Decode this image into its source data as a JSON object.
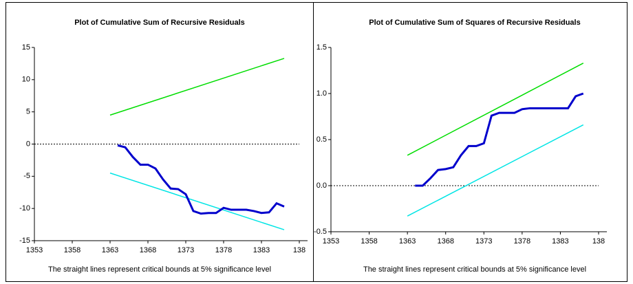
{
  "chart_data": [
    {
      "type": "line",
      "title": "Plot of Cumulative Sum of Recursive Residuals",
      "note": "The straight lines represent critical bounds at 5% significance level",
      "xlim": [
        1353,
        1388
      ],
      "xticks": [
        1353,
        1358,
        1363,
        1368,
        1373,
        1378,
        1383,
        {
          "value": 1388,
          "label": "138"
        }
      ],
      "ylim": [
        -15,
        15
      ],
      "yticks": [
        15,
        10,
        5,
        0,
        -5,
        -10,
        -15
      ],
      "reference_line": 0,
      "series": [
        {
          "color": "#00dd00",
          "x": [
            1363,
            1386
          ],
          "values": [
            4.5,
            13.3
          ]
        },
        {
          "color": "#00e5e5",
          "x": [
            1363,
            1386
          ],
          "values": [
            -4.5,
            -13.3
          ]
        },
        {
          "color": "#0000cc",
          "x": [
            1364,
            1365,
            1366,
            1367,
            1368,
            1369,
            1370,
            1371,
            1372,
            1373,
            1374,
            1375,
            1376,
            1377,
            1378,
            1379,
            1380,
            1381,
            1382,
            1383,
            1384,
            1385,
            1386
          ],
          "values": [
            -0.2,
            -0.5,
            -2.0,
            -3.2,
            -3.2,
            -3.8,
            -5.5,
            -6.9,
            -7.0,
            -7.8,
            -10.4,
            -10.8,
            -10.7,
            -10.7,
            -9.9,
            -10.2,
            -10.2,
            -10.2,
            -10.4,
            -10.7,
            -10.6,
            -9.2,
            -9.7
          ]
        }
      ]
    },
    {
      "type": "line",
      "title": "Plot of Cumulative Sum of Squares of Recursive Residuals",
      "note": "The straight lines represent critical bounds at 5% significance level",
      "xlim": [
        1353,
        1388
      ],
      "xticks": [
        1353,
        1358,
        1363,
        1368,
        1373,
        1378,
        1383,
        {
          "value": 1388,
          "label": "138"
        }
      ],
      "ylim": [
        -0.5,
        1.5
      ],
      "yticks": [
        1.5,
        {
          "value": 1.0,
          "label": "1.0"
        },
        0.5,
        {
          "value": 0.0,
          "label": "0.0"
        },
        -0.5
      ],
      "reference_line": 0,
      "series": [
        {
          "color": "#00dd00",
          "x": [
            1363,
            1386
          ],
          "values": [
            0.33,
            1.33
          ]
        },
        {
          "color": "#00e5e5",
          "x": [
            1363,
            1386
          ],
          "values": [
            -0.33,
            0.66
          ]
        },
        {
          "color": "#0000cc",
          "x": [
            1364,
            1365,
            1366,
            1367,
            1368,
            1369,
            1370,
            1371,
            1372,
            1373,
            1374,
            1375,
            1376,
            1377,
            1378,
            1379,
            1380,
            1381,
            1382,
            1383,
            1384,
            1385,
            1386
          ],
          "values": [
            0.0,
            0.0,
            0.08,
            0.17,
            0.18,
            0.2,
            0.33,
            0.43,
            0.43,
            0.46,
            0.76,
            0.79,
            0.79,
            0.79,
            0.83,
            0.84,
            0.84,
            0.84,
            0.84,
            0.84,
            0.84,
            0.97,
            1.0
          ]
        }
      ]
    }
  ]
}
